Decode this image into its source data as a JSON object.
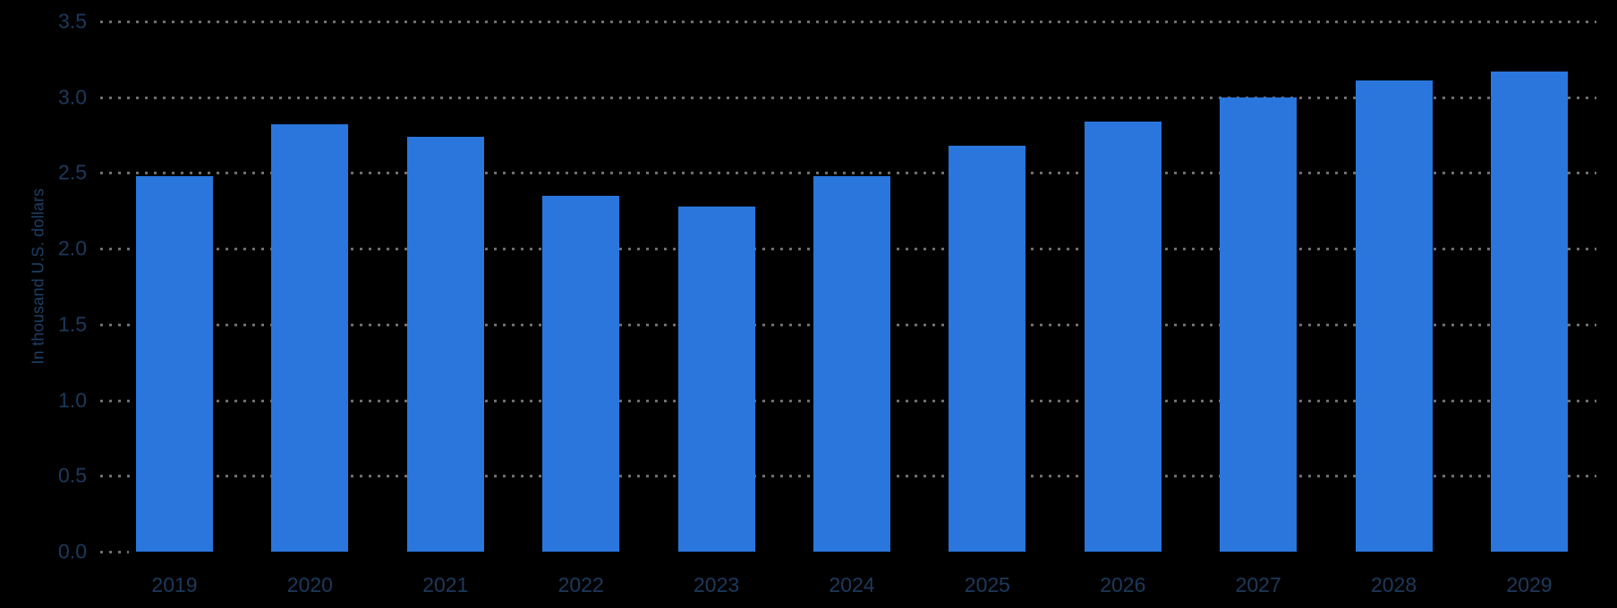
{
  "chart_data": {
    "type": "bar",
    "title": "",
    "categories": [
      "2019",
      "2020",
      "2021",
      "2022",
      "2023",
      "2024",
      "2025",
      "2026",
      "2027",
      "2028",
      "2029"
    ],
    "values": [
      2.48,
      2.82,
      2.74,
      2.35,
      2.28,
      2.48,
      2.68,
      2.84,
      3.0,
      3.11,
      3.17
    ],
    "xlabel": "",
    "ylabel": "In thousand U.S. dollars",
    "ylim": [
      0,
      3.5
    ],
    "ytick_step": 0.5,
    "ytick_labels": [
      "0.0",
      "0.5",
      "1.0",
      "1.5",
      "2.0",
      "2.5",
      "3.0",
      "3.5"
    ],
    "grid": "horizontal-dotted",
    "legend": "none",
    "colors": {
      "background": "#000000",
      "bar": "#2a76dc",
      "tick_label": "#1c3a5c",
      "axis_title": "#1d4066",
      "gridline": "#6e6e6e"
    }
  }
}
